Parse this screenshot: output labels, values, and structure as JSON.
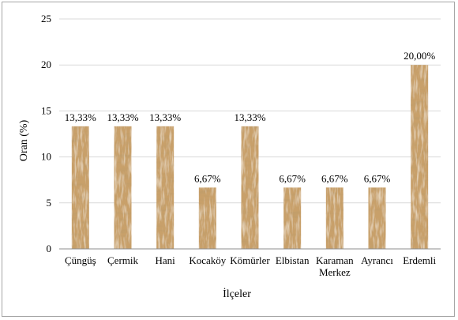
{
  "chart_data": {
    "type": "bar",
    "categories": [
      "Çüngüş",
      "Çermik",
      "Hani",
      "Kocaköy",
      "Kömürler",
      "Elbistan",
      "Karaman Merkez",
      "Ayrancı",
      "Erdemli"
    ],
    "values": [
      13.33,
      13.33,
      13.33,
      6.67,
      13.33,
      6.67,
      6.67,
      6.67,
      20.0
    ],
    "data_labels": [
      "13,33%",
      "13,33%",
      "13,33%",
      "6,67%",
      "13,33%",
      "6,67%",
      "6,67%",
      "6,67%",
      "20,00%"
    ],
    "xlabel": "İlçeler",
    "ylabel": "Oran (%)",
    "ylim": [
      0,
      25
    ],
    "yticks": [
      0,
      5,
      10,
      15,
      20,
      25
    ],
    "grid": true,
    "legend": "none",
    "colors": {
      "bar_base": "#c8a06a",
      "bar_light": "#ecd9b5",
      "bar_dark": "#8a5e2c",
      "grid": "#d9d9d9",
      "axis": "#8c8c8c",
      "frame": "#a6a6a6"
    }
  }
}
